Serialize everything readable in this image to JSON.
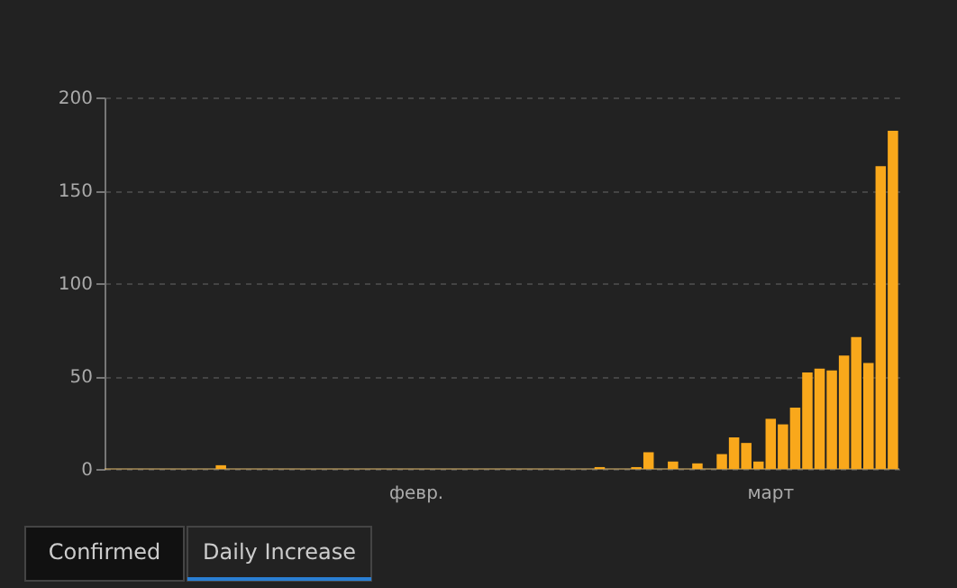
{
  "chart_data": {
    "type": "bar",
    "categories": [
      null,
      null,
      null,
      null,
      null,
      null,
      null,
      null,
      null,
      null,
      null,
      null,
      null,
      null,
      null,
      null,
      null,
      null,
      null,
      null,
      null,
      null,
      null,
      null,
      null,
      "февр.",
      null,
      null,
      null,
      null,
      null,
      null,
      null,
      null,
      null,
      null,
      null,
      null,
      null,
      null,
      null,
      null,
      null,
      null,
      null,
      null,
      null,
      null,
      null,
      null,
      null,
      null,
      null,
      null,
      "март",
      null,
      null,
      null,
      null,
      null,
      null,
      null,
      null,
      null,
      null
    ],
    "values": [
      0,
      0,
      0,
      0,
      0,
      0,
      0,
      0,
      0,
      2,
      0,
      0,
      0,
      0,
      0,
      0,
      0,
      0,
      0,
      0,
      0,
      0,
      0,
      0,
      0,
      0,
      0,
      0,
      0,
      0,
      0,
      0,
      0,
      0,
      0,
      0,
      0,
      0,
      0,
      0,
      1,
      0,
      0,
      1,
      9,
      0,
      4,
      0,
      3,
      0,
      8,
      17,
      14,
      4,
      27,
      24,
      33,
      52,
      54,
      53,
      61,
      71,
      57,
      163,
      182
    ],
    "color": "#f9a81b",
    "ylim": [
      0,
      200
    ],
    "yticks": [
      0,
      50,
      100,
      150,
      200
    ],
    "grid": "y",
    "line_style": "dashed",
    "annotations": [
      "Confirmed",
      "Daily Increase"
    ]
  }
}
